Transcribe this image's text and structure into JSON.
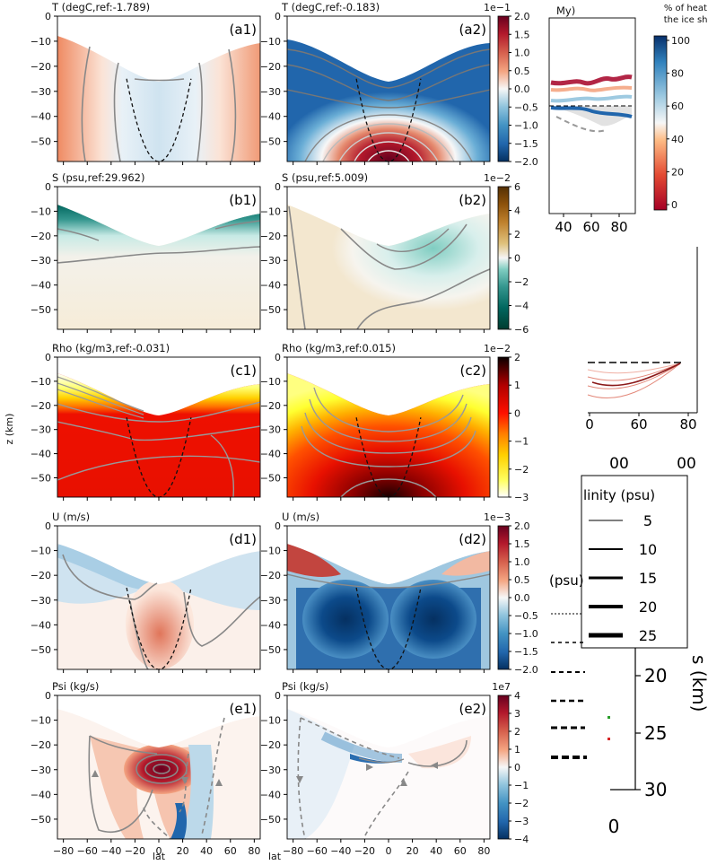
{
  "chart_data": {
    "type": "heatmap",
    "shared": {
      "xlabel": "lat",
      "ylabel": "z (km)",
      "x_ticks": [
        -80,
        -60,
        -40,
        -20,
        0,
        20,
        40,
        60,
        80
      ],
      "y_ticks": [
        0,
        -10,
        -20,
        -30,
        -40,
        -50
      ],
      "xlim": [
        -85,
        85
      ],
      "ylim": [
        -58,
        0
      ],
      "ice_shell_depth_equator_km": -25,
      "ice_shell_depth_pole_km": -7
    },
    "panels": [
      {
        "id": "a1",
        "label": "(a1)",
        "title": "T (degC,ref:-1.789)",
        "field": "T"
      },
      {
        "id": "a2",
        "label": "(a2)",
        "title": "T (degC,ref:-0.183)",
        "field": "T"
      },
      {
        "id": "b1",
        "label": "(b1)",
        "title": "S (psu,ref:29.962)",
        "field": "S"
      },
      {
        "id": "b2",
        "label": "(b2)",
        "title": "S (psu,ref:5.009)",
        "field": "S"
      },
      {
        "id": "c1",
        "label": "(c1)",
        "title": "Rho (kg/m3,ref:-0.031)",
        "field": "Rho"
      },
      {
        "id": "c2",
        "label": "(c2)",
        "title": "Rho (kg/m3,ref:0.015)",
        "field": "Rho"
      },
      {
        "id": "d1",
        "label": "(d1)",
        "title": "U (m/s)",
        "field": "U"
      },
      {
        "id": "d2",
        "label": "(d2)",
        "title": "U (m/s)",
        "field": "U"
      },
      {
        "id": "e1",
        "label": "(e1)",
        "title": "Psi (kg/s)",
        "field": "Psi"
      },
      {
        "id": "e2",
        "label": "(e2)",
        "title": "Psi (kg/s)",
        "field": "Psi"
      }
    ],
    "colorbars": [
      {
        "row": "a",
        "cmap": "RdBu_r",
        "exponent": "1e−1",
        "vmin": -2.0,
        "vmax": 2.0,
        "ticks": [
          "2.0",
          "1.5",
          "1.0",
          "0.5",
          "0.0",
          "−0.5",
          "−1.0",
          "−1.5",
          "−2.0"
        ]
      },
      {
        "row": "b",
        "cmap": "BrBG",
        "exponent": "1e−2",
        "vmin": -6,
        "vmax": 6,
        "ticks": [
          "6",
          "4",
          "2",
          "0",
          "−2",
          "−4",
          "−6"
        ]
      },
      {
        "row": "c",
        "cmap": "hot_r",
        "exponent": "1e−2",
        "vmin": -3,
        "vmax": 2,
        "ticks": [
          "2",
          "1",
          "0",
          "−1",
          "−2",
          "−3"
        ]
      },
      {
        "row": "d",
        "cmap": "RdBu_r",
        "exponent": "1e−3",
        "vmin": -2.0,
        "vmax": 2.0,
        "ticks": [
          "2.0",
          "1.5",
          "1.0",
          "0.5",
          "0.0",
          "−0.5",
          "−1.0",
          "−1.5",
          "−2.0"
        ]
      },
      {
        "row": "e",
        "cmap": "RdBu_r",
        "exponent": "1e7",
        "vmin": -4,
        "vmax": 4,
        "ticks": [
          "4",
          "3",
          "2",
          "1",
          "0",
          "−1",
          "−2",
          "−3",
          "−4"
        ]
      }
    ],
    "overlays": {
      "heat_colorbar": {
        "title_line1": "% of heat in",
        "title_line2": "the ice shell",
        "ticks": [
          "100",
          "80",
          "60",
          "40",
          "20",
          "0"
        ]
      },
      "top_inset": {
        "title_fragment": "My)",
        "x_ticks": [
          "40",
          "60",
          "80"
        ]
      },
      "middle_inset": {
        "x_ticks": [
          "0",
          "60",
          "80"
        ],
        "partial_glyphs": "00"
      },
      "salinity_legend": {
        "title": "linity (psu)",
        "entries": [
          "5",
          "10",
          "15",
          "20",
          "25"
        ]
      },
      "left_fragment": "(psu)",
      "depth_axis": {
        "label": "s (km)",
        "ticks": [
          "20",
          "25",
          "30"
        ]
      },
      "bottom_zero": "0"
    }
  }
}
